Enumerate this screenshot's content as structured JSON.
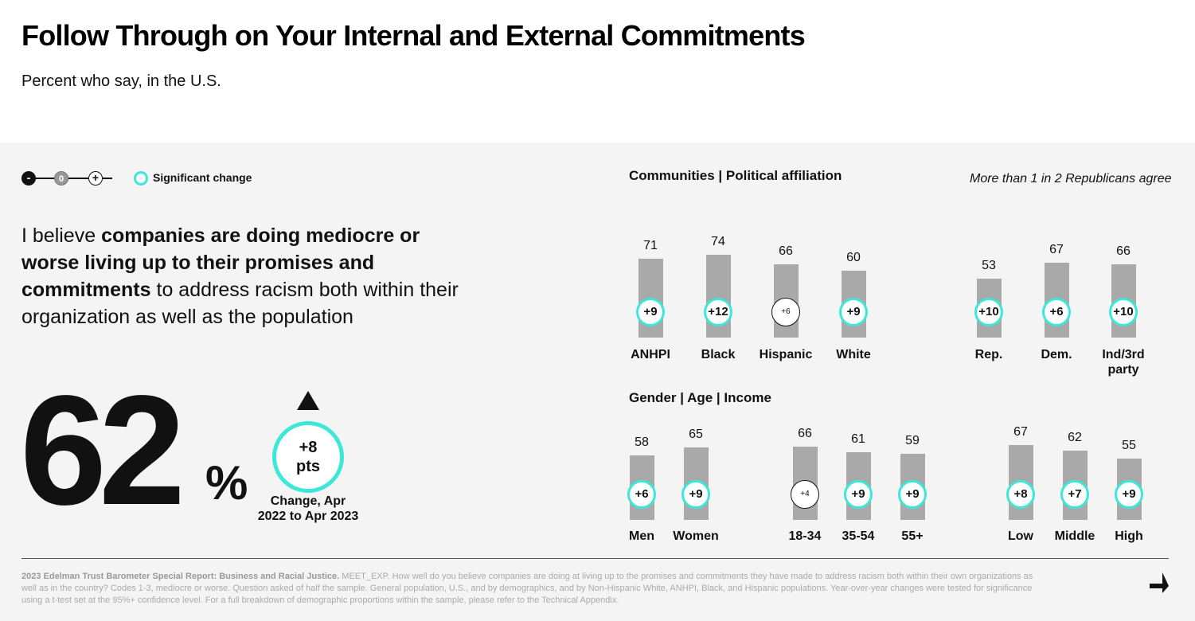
{
  "header": {
    "title": "Follow Through on Your Internal and External Commitments",
    "subtitle": "Percent who say, in the U.S."
  },
  "legend": {
    "negative_symbol": "-",
    "zero_symbol": "0",
    "positive_symbol": "+",
    "significant_label": "Significant change"
  },
  "statement": {
    "part1": "I believe ",
    "bold": "companies are doing mediocre or worse living up to their promises and commitments",
    "part2": " to address racism both within their organization as well as the population"
  },
  "headline": {
    "value": "62",
    "unit": "%",
    "change_value": "+8",
    "change_unit": "pts",
    "change_label": "Change, Apr 2022 to Apr 2023"
  },
  "colors": {
    "significant": "#3de8d9",
    "bar": "#a9a9a9"
  },
  "chart_data": [
    {
      "type": "bar",
      "title": "Communities | Political affiliation",
      "annotation": "More than 1 in 2 Republicans agree",
      "groups": [
        {
          "categories": [
            "ANHPI",
            "Black",
            "Hispanic",
            "White"
          ],
          "values": [
            71,
            74,
            66,
            60
          ],
          "changes": [
            "+9",
            "+12",
            "+6",
            "+9"
          ],
          "significant": [
            true,
            true,
            false,
            true
          ]
        },
        {
          "categories": [
            "Rep.",
            "Dem.",
            "Ind/3rd party"
          ],
          "values": [
            53,
            67,
            66
          ],
          "changes": [
            "+10",
            "+6",
            "+10"
          ],
          "significant": [
            true,
            true,
            true
          ]
        }
      ]
    },
    {
      "type": "bar",
      "title": "Gender | Age | Income",
      "groups": [
        {
          "categories": [
            "Men",
            "Women"
          ],
          "values": [
            58,
            65
          ],
          "changes": [
            "+6",
            "+9"
          ],
          "significant": [
            true,
            true
          ]
        },
        {
          "categories": [
            "18-34",
            "35-54",
            "55+"
          ],
          "values": [
            66,
            61,
            59
          ],
          "changes": [
            "+4",
            "+9",
            "+9"
          ],
          "significant": [
            false,
            true,
            true
          ]
        },
        {
          "categories": [
            "Low",
            "Middle",
            "High"
          ],
          "values": [
            67,
            62,
            55
          ],
          "changes": [
            "+8",
            "+7",
            "+9"
          ],
          "significant": [
            true,
            true,
            true
          ]
        }
      ]
    }
  ],
  "footnote": {
    "source": "2023 Edelman Trust Barometer Special Report: Business and Racial Justice.",
    "text": " MEET_EXP. How well do you believe companies are doing at living up to the promises and commitments they have made to address racism both within their own organizations as well as in the country? Codes 1-3, mediocre or worse. Question asked of half the sample. General population, U.S., and by demographics, and by Non-Hispanic White, ANHPI, Black, and Hispanic populations. Year-over-year changes were tested for significance using a t-test set at the 95%+ confidence level. For a full breakdown of demographic proportions within the sample, please refer to the Technical Appendix."
  }
}
